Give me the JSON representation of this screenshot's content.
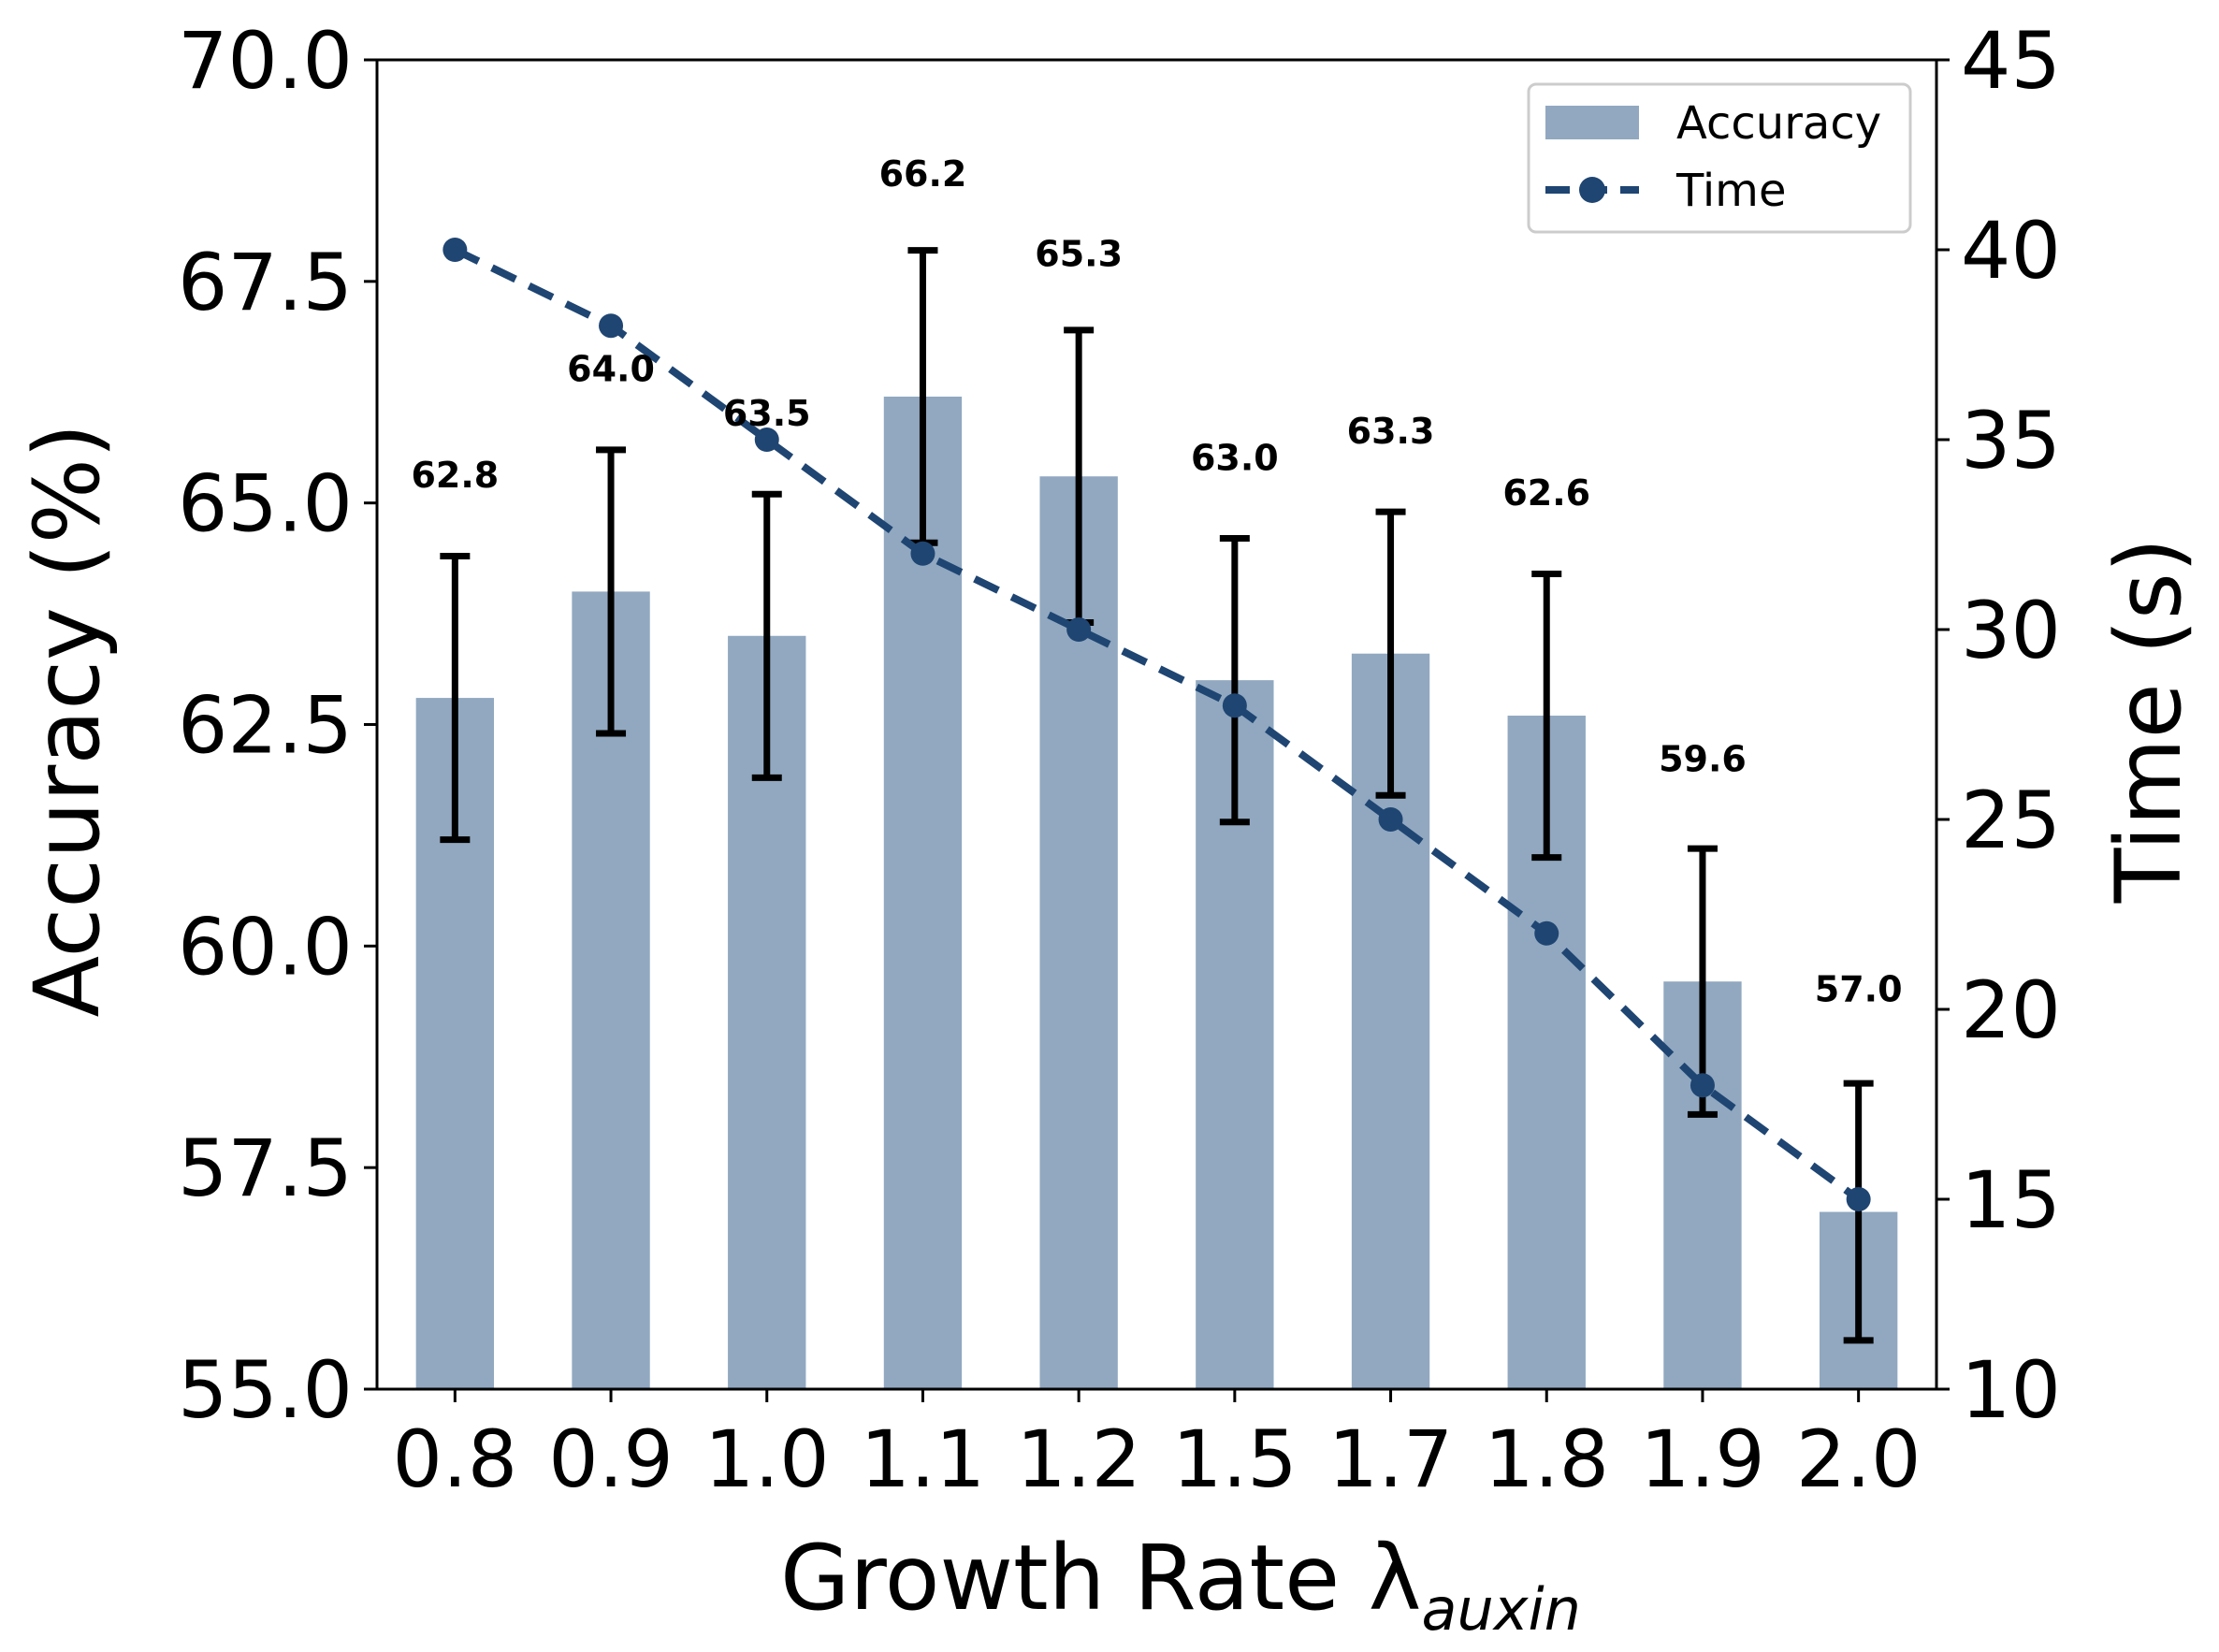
{
  "chart_data": {
    "type": "bar",
    "categories": [
      "0.8",
      "0.9",
      "1.0",
      "1.1",
      "1.2",
      "1.5",
      "1.7",
      "1.8",
      "1.9",
      "2.0"
    ],
    "series": [
      {
        "name": "Accuracy",
        "type": "bar",
        "axis": "left",
        "color": "#91a8c0",
        "values": [
          62.8,
          64.0,
          63.5,
          66.2,
          65.3,
          63.0,
          63.3,
          62.6,
          59.6,
          57.0
        ],
        "error": [
          1.6,
          1.6,
          1.6,
          1.65,
          1.65,
          1.6,
          1.6,
          1.6,
          1.5,
          1.45
        ],
        "value_labels": [
          "62.8",
          "64.0",
          "63.5",
          "66.2",
          "65.3",
          "63.0",
          "63.3",
          "62.6",
          "59.6",
          "57.0"
        ]
      },
      {
        "name": "Time",
        "type": "line",
        "axis": "right",
        "color": "#1f4572",
        "style": "dashed",
        "values": [
          40,
          38,
          35,
          32,
          30,
          28,
          25,
          22,
          18,
          15
        ]
      }
    ],
    "xlabel": "Growth Rate λ",
    "xlabel_subscript": "auxin",
    "ylabel": "Accuracy (%)",
    "y2label": "Time (s)",
    "ylim": [
      55.0,
      70.0
    ],
    "y2lim": [
      10,
      45
    ],
    "yticks": [
      "55.0",
      "57.5",
      "60.0",
      "62.5",
      "65.0",
      "67.5",
      "70.0"
    ],
    "y2ticks": [
      "10",
      "15",
      "20",
      "25",
      "30",
      "35",
      "40",
      "45"
    ],
    "legend": {
      "position": "top-right",
      "entries": [
        "Accuracy",
        "Time"
      ]
    },
    "grid": false
  }
}
